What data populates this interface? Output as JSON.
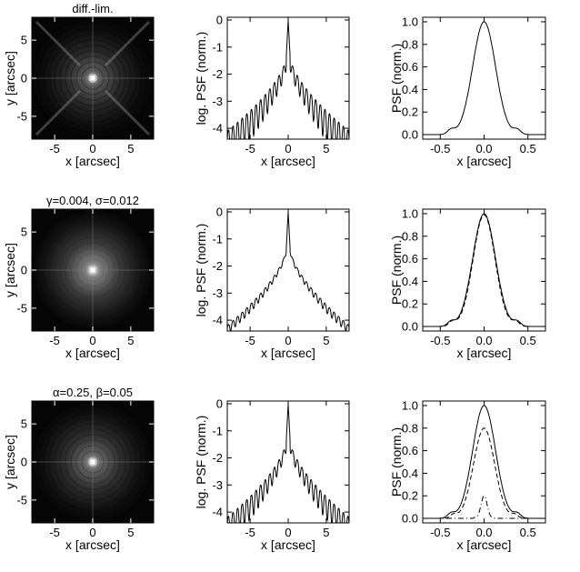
{
  "rows": [
    {
      "title": "diff.-lim.",
      "image_panel": {
        "xlabel": "x [arcsec]",
        "ylabel": "y [arcsec]",
        "xticks": [
          "-5",
          "0",
          "5"
        ],
        "yticks": [
          "5",
          "0",
          "-5"
        ],
        "xlim": [
          -8,
          8
        ],
        "ylim": [
          -8,
          8
        ],
        "peak_brightness": 1.0,
        "halo_brightness": 0.35,
        "ring_pattern": "strong",
        "diagonal_spikes": true
      },
      "log_panel": {
        "xlabel": "x [arcsec]",
        "ylabel": "log. PSF (norm.)",
        "xticks": [
          "-5",
          "0",
          "5"
        ],
        "yticks": [
          "0",
          "-1",
          "-2",
          "-3",
          "-4"
        ],
        "xlim": [
          -8,
          8
        ],
        "ylim": [
          -4.4,
          0.1
        ],
        "wing_level": -2.4,
        "ring_depth": 2.2,
        "outer_level": -4.1
      },
      "linear_panel": {
        "xlabel": "x [arcsec]",
        "ylabel": "PSF (norm.)",
        "xticks": [
          "-0.5",
          "0.0",
          "0.5"
        ],
        "yticks": [
          "0.0",
          "0.2",
          "0.4",
          "0.6",
          "0.8",
          "1.0"
        ],
        "xlim": [
          -0.7,
          0.7
        ],
        "ylim": [
          -0.04,
          1.04
        ],
        "series": [
          {
            "style": "solid",
            "peak": 1.0,
            "width": 0.13
          }
        ]
      }
    },
    {
      "title": "γ=0.004, σ=0.012",
      "image_panel": {
        "xlabel": "x [arcsec]",
        "ylabel": "y [arcsec]",
        "xticks": [
          "-5",
          "0",
          "5"
        ],
        "yticks": [
          "5",
          "0",
          "-5"
        ],
        "xlim": [
          -8,
          8
        ],
        "ylim": [
          -8,
          8
        ],
        "peak_brightness": 1.0,
        "halo_brightness": 0.5,
        "ring_pattern": "weak",
        "diagonal_spikes": false
      },
      "log_panel": {
        "xlabel": "x [arcsec]",
        "ylabel": "log. PSF (norm.)",
        "xticks": [
          "-5",
          "0",
          "5"
        ],
        "yticks": [
          "0",
          "-1",
          "-2",
          "-3",
          "-4"
        ],
        "xlim": [
          -8,
          8
        ],
        "ylim": [
          -4.4,
          0.1
        ],
        "wing_level": -2.6,
        "ring_depth": 0.6,
        "outer_level": -4.2
      },
      "linear_panel": {
        "xlabel": "x [arcsec]",
        "ylabel": "PSF (norm.)",
        "xticks": [
          "-0.5",
          "0.0",
          "0.5"
        ],
        "yticks": [
          "0.0",
          "0.2",
          "0.4",
          "0.6",
          "0.8",
          "1.0"
        ],
        "xlim": [
          -0.7,
          0.7
        ],
        "ylim": [
          -0.04,
          1.04
        ],
        "series": [
          {
            "style": "solid",
            "peak": 1.0,
            "width": 0.13
          },
          {
            "style": "dashed",
            "peak": 0.99,
            "width": 0.125
          }
        ]
      }
    },
    {
      "title": "α=0.25, β=0.05",
      "image_panel": {
        "xlabel": "x [arcsec]",
        "ylabel": "y [arcsec]",
        "xticks": [
          "-5",
          "0",
          "5"
        ],
        "yticks": [
          "5",
          "0",
          "-5"
        ],
        "xlim": [
          -8,
          8
        ],
        "ylim": [
          -8,
          8
        ],
        "peak_brightness": 1.0,
        "halo_brightness": 0.4,
        "ring_pattern": "medium",
        "diagonal_spikes": false
      },
      "log_panel": {
        "xlabel": "x [arcsec]",
        "ylabel": "log. PSF (norm.)",
        "xticks": [
          "-5",
          "0",
          "5"
        ],
        "yticks": [
          "0",
          "-1",
          "-2",
          "-3",
          "-4"
        ],
        "xlim": [
          -8,
          8
        ],
        "ylim": [
          -4.4,
          0.1
        ],
        "wing_level": -2.6,
        "ring_depth": 1.7,
        "outer_level": -4.2
      },
      "linear_panel": {
        "xlabel": "x [arcsec]",
        "ylabel": "PSF (norm.)",
        "xticks": [
          "-0.5",
          "0.0",
          "0.5"
        ],
        "yticks": [
          "0.0",
          "0.2",
          "0.4",
          "0.6",
          "0.8",
          "1.0"
        ],
        "xlim": [
          -0.7,
          0.7
        ],
        "ylim": [
          -0.04,
          1.04
        ],
        "series": [
          {
            "style": "solid",
            "peak": 1.0,
            "width": 0.13
          },
          {
            "style": "dashed",
            "peak": 0.8,
            "width": 0.12
          },
          {
            "style": "dashdot",
            "peak": 0.2,
            "width": 0.035
          }
        ]
      }
    }
  ],
  "chart_data": [
    {
      "type": "heatmap",
      "title": "diff.-lim.",
      "xlabel": "x [arcsec]",
      "ylabel": "y [arcsec]",
      "xlim": [
        -8,
        8
      ],
      "ylim": [
        -8,
        8
      ]
    },
    {
      "type": "line",
      "xlabel": "x [arcsec]",
      "ylabel": "log. PSF (norm.)",
      "xlim": [
        -8,
        8
      ],
      "ylim": [
        -4.4,
        0.1
      ],
      "x": [
        -8,
        -6,
        -4,
        -2,
        -1,
        -0.5,
        0,
        0.5,
        1,
        2,
        4,
        6,
        8
      ],
      "values": [
        -4.3,
        -4.1,
        -3.2,
        -2.4,
        -1.5,
        -1.3,
        0,
        -1.3,
        -1.5,
        -2.4,
        -3.2,
        -4.1,
        -4.3
      ]
    },
    {
      "type": "line",
      "xlabel": "x [arcsec]",
      "ylabel": "PSF (norm.)",
      "xlim": [
        -0.7,
        0.7
      ],
      "ylim": [
        0,
        1.0
      ],
      "x": [
        -0.5,
        -0.4,
        -0.3,
        -0.2,
        -0.1,
        0.0,
        0.1,
        0.2,
        0.3,
        0.4,
        0.5
      ],
      "values": [
        0.0,
        0.04,
        0.0,
        0.17,
        0.72,
        1.0,
        0.72,
        0.17,
        0.0,
        0.04,
        0.0
      ]
    },
    {
      "type": "heatmap",
      "title": "γ=0.004, σ=0.012",
      "xlabel": "x [arcsec]",
      "ylabel": "y [arcsec]",
      "xlim": [
        -8,
        8
      ],
      "ylim": [
        -8,
        8
      ]
    },
    {
      "type": "line",
      "xlabel": "x [arcsec]",
      "ylabel": "log. PSF (norm.)",
      "xlim": [
        -8,
        8
      ],
      "ylim": [
        -4.4,
        0.1
      ],
      "x": [
        -8,
        -6,
        -4,
        -2,
        -1,
        -0.5,
        0,
        0.5,
        1,
        2,
        4,
        6,
        8
      ],
      "values": [
        -4.3,
        -4.1,
        -3.4,
        -2.6,
        -2.0,
        -1.4,
        0,
        -1.4,
        -2.0,
        -2.6,
        -3.4,
        -4.1,
        -4.3
      ]
    },
    {
      "type": "line",
      "xlabel": "x [arcsec]",
      "ylabel": "PSF (norm.)",
      "xlim": [
        -0.7,
        0.7
      ],
      "ylim": [
        0,
        1.0
      ],
      "series": [
        {
          "x": [
            -0.5,
            -0.4,
            -0.3,
            -0.2,
            -0.1,
            0.0,
            0.1,
            0.2,
            0.3,
            0.4,
            0.5
          ],
          "values": [
            0.0,
            0.04,
            0.0,
            0.17,
            0.72,
            1.0,
            0.72,
            0.17,
            0.0,
            0.04,
            0.0
          ]
        },
        {
          "x": [
            -0.5,
            -0.4,
            -0.3,
            -0.2,
            -0.1,
            0.0,
            0.1,
            0.2,
            0.3,
            0.4,
            0.5
          ],
          "values": [
            0.0,
            0.02,
            0.0,
            0.15,
            0.7,
            0.99,
            0.7,
            0.15,
            0.0,
            0.02,
            0.0
          ]
        }
      ]
    },
    {
      "type": "heatmap",
      "title": "α=0.25, β=0.05",
      "xlabel": "x [arcsec]",
      "ylabel": "y [arcsec]",
      "xlim": [
        -8,
        8
      ],
      "ylim": [
        -8,
        8
      ]
    },
    {
      "type": "line",
      "xlabel": "x [arcsec]",
      "ylabel": "log. PSF (norm.)",
      "xlim": [
        -8,
        8
      ],
      "ylim": [
        -4.4,
        0.1
      ],
      "x": [
        -8,
        -6,
        -4,
        -2,
        -1,
        -0.5,
        0,
        0.5,
        1,
        2,
        4,
        6,
        8
      ],
      "values": [
        -4.4,
        -4.2,
        -3.4,
        -2.6,
        -1.7,
        -1.5,
        0,
        -1.5,
        -1.7,
        -2.6,
        -3.4,
        -4.2,
        -4.4
      ]
    },
    {
      "type": "line",
      "xlabel": "x [arcsec]",
      "ylabel": "PSF (norm.)",
      "xlim": [
        -0.7,
        0.7
      ],
      "ylim": [
        0,
        1.0
      ],
      "series": [
        {
          "x": [
            -0.5,
            -0.4,
            -0.3,
            -0.2,
            -0.1,
            0.0,
            0.1,
            0.2,
            0.3,
            0.4,
            0.5
          ],
          "values": [
            0.0,
            0.04,
            0.0,
            0.17,
            0.72,
            1.0,
            0.72,
            0.17,
            0.0,
            0.04,
            0.0
          ]
        },
        {
          "x": [
            -0.5,
            -0.4,
            -0.3,
            -0.2,
            -0.1,
            0.0,
            0.1,
            0.2,
            0.3,
            0.4,
            0.5
          ],
          "values": [
            0.0,
            0.01,
            0.0,
            0.12,
            0.55,
            0.8,
            0.55,
            0.12,
            0.0,
            0.01,
            0.0
          ]
        },
        {
          "x": [
            -0.2,
            -0.1,
            -0.05,
            0.0,
            0.05,
            0.1,
            0.2
          ],
          "values": [
            0.0,
            0.02,
            0.12,
            0.2,
            0.12,
            0.02,
            0.0
          ]
        }
      ]
    }
  ]
}
